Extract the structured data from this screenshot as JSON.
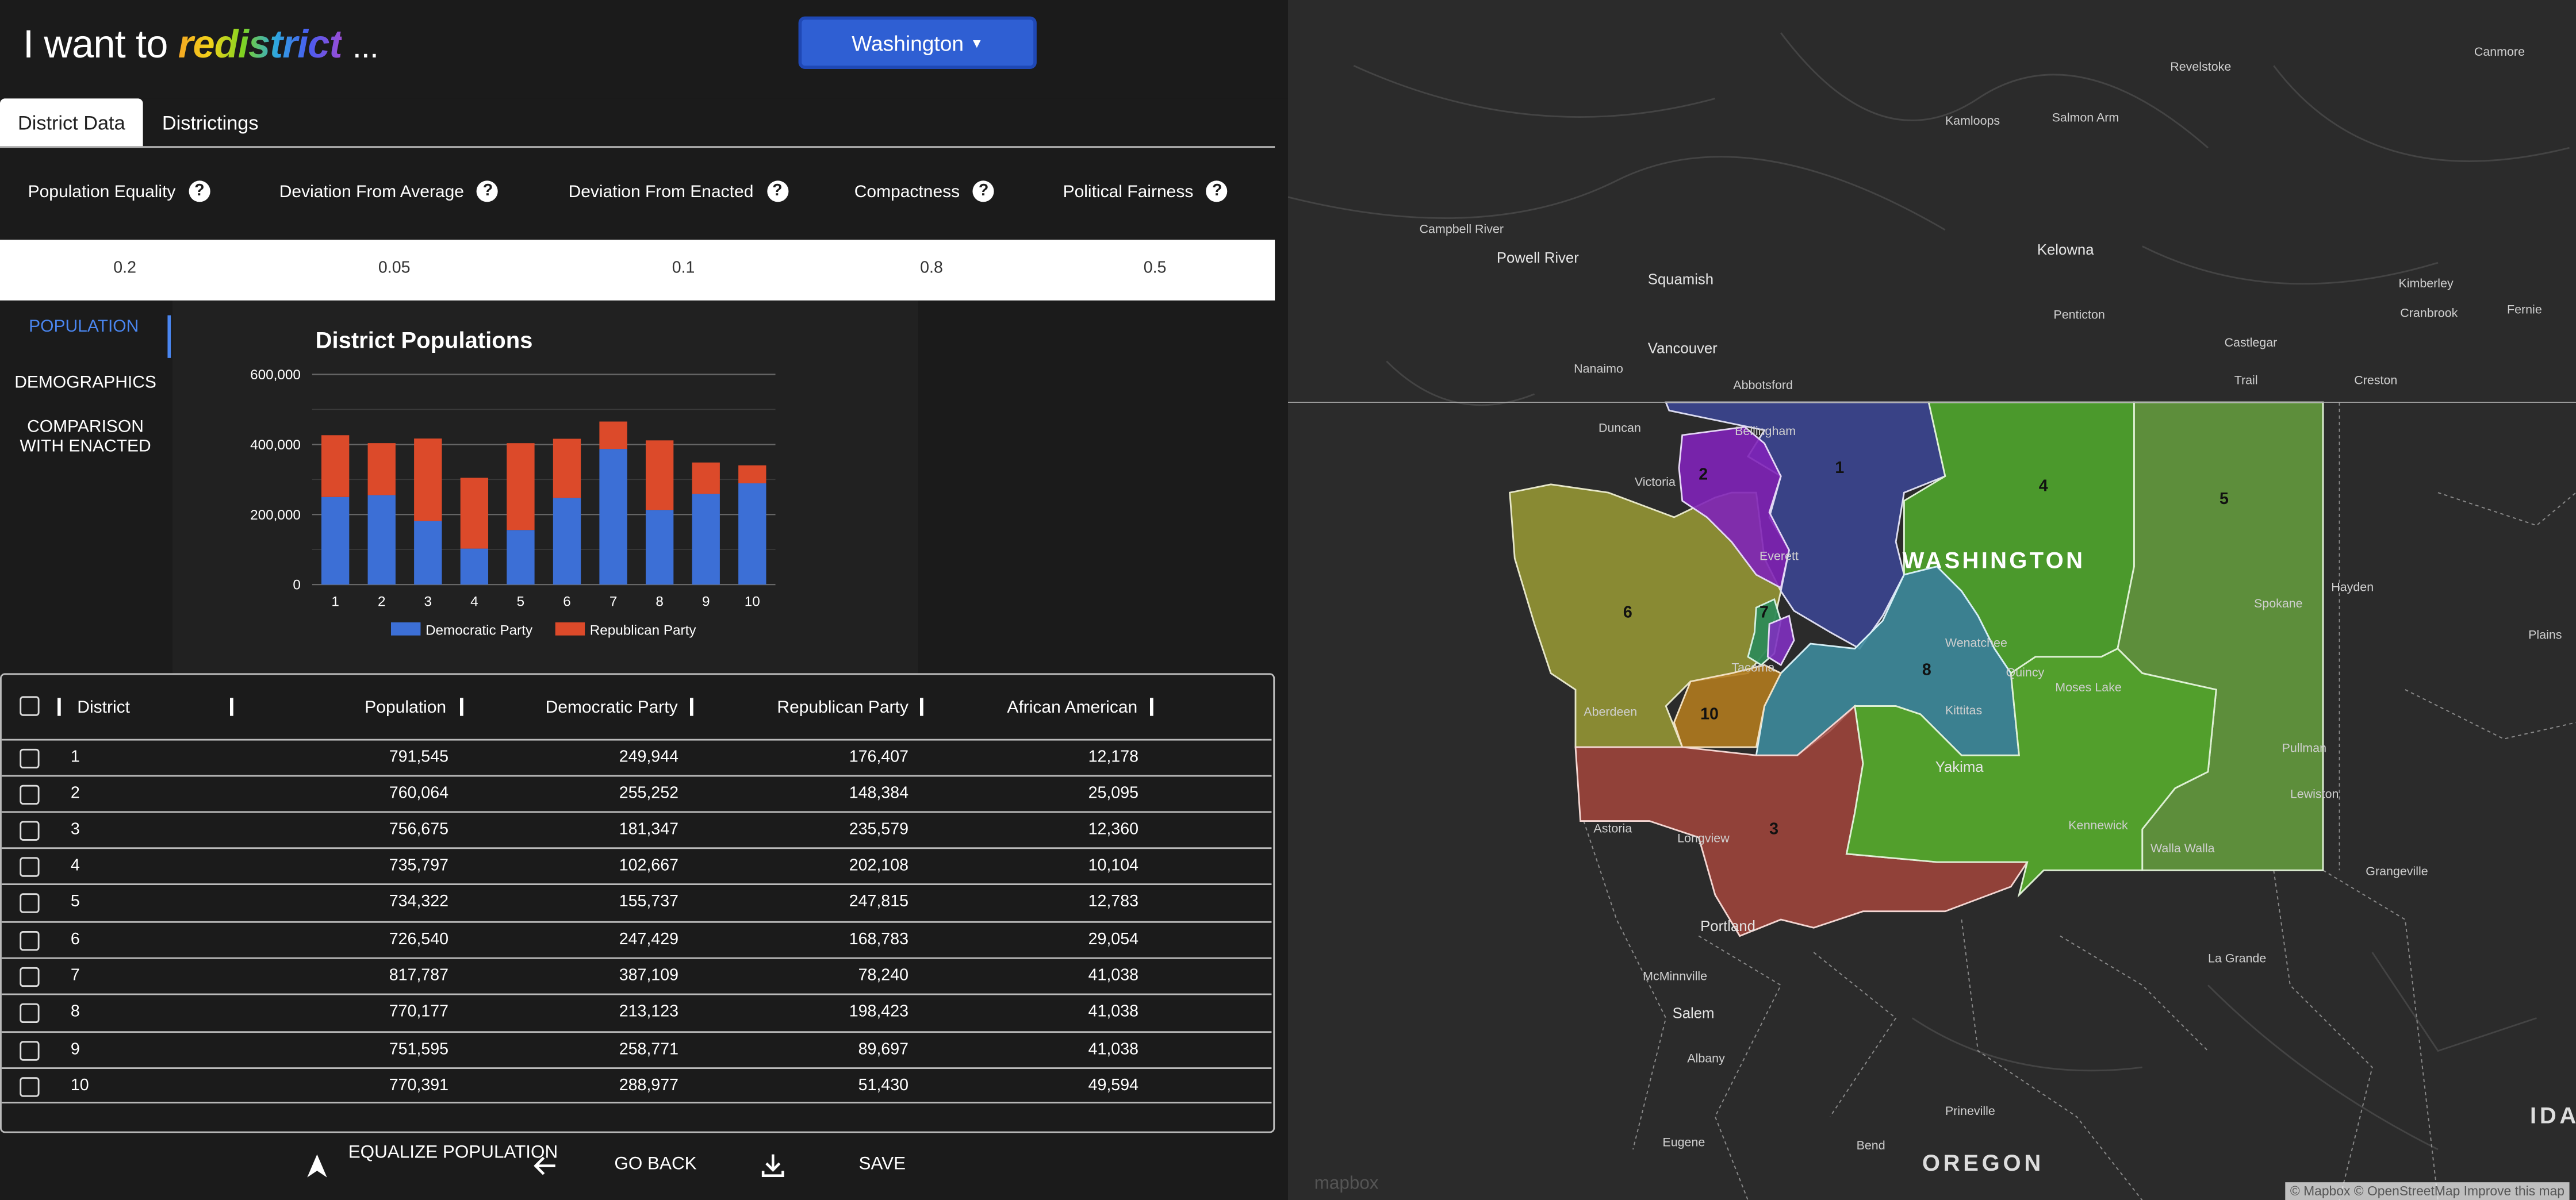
{
  "header": {
    "title_prefix": "I want to",
    "title_word": "redistrict",
    "title_suffix": "...",
    "state_selector": "Washington"
  },
  "tabs": [
    "District Data",
    "Districtings"
  ],
  "measures": [
    {
      "label": "Population Equality",
      "value": "0.2"
    },
    {
      "label": "Deviation From Average",
      "value": "0.05"
    },
    {
      "label": "Deviation From Enacted",
      "value": "0.1"
    },
    {
      "label": "Compactness",
      "value": "0.8"
    },
    {
      "label": "Political Fairness",
      "value": "0.5"
    }
  ],
  "help_icon_glyph": "?",
  "side_tabs": [
    "POPULATION",
    "DEMOGRAPHICS",
    "COMPARISON WITH ENACTED"
  ],
  "chart_data": {
    "type": "bar",
    "title": "District Populations",
    "categories": [
      "1",
      "2",
      "3",
      "4",
      "5",
      "6",
      "7",
      "8",
      "9",
      "10"
    ],
    "series": [
      {
        "name": "Democratic Party",
        "values": [
          249944,
          255252,
          181347,
          102667,
          155737,
          247429,
          387109,
          213123,
          258771,
          288977
        ]
      },
      {
        "name": "Republican Party",
        "values": [
          176407,
          148384,
          235579,
          202108,
          247815,
          168783,
          78240,
          198423,
          89697,
          51430
        ]
      }
    ],
    "stacked": true,
    "ylim": [
      0,
      600000
    ],
    "yticks": [
      "0",
      "200,000",
      "400,000",
      "600,000"
    ],
    "colors": [
      "#3c6fd6",
      "#dc4a2a"
    ],
    "legend": "bottom",
    "grid": true
  },
  "table": {
    "columns": [
      "District",
      "Population",
      "Democratic Party",
      "Republican Party",
      "African American"
    ],
    "rows": [
      [
        "1",
        "791,545",
        "249,944",
        "176,407",
        "12,178"
      ],
      [
        "2",
        "760,064",
        "255,252",
        "148,384",
        "25,095"
      ],
      [
        "3",
        "756,675",
        "181,347",
        "235,579",
        "12,360"
      ],
      [
        "4",
        "735,797",
        "102,667",
        "202,108",
        "10,104"
      ],
      [
        "5",
        "734,322",
        "155,737",
        "247,815",
        "12,783"
      ],
      [
        "6",
        "726,540",
        "247,429",
        "168,783",
        "29,054"
      ],
      [
        "7",
        "817,787",
        "387,109",
        "78,240",
        "41,038"
      ],
      [
        "8",
        "770,177",
        "213,123",
        "198,423",
        "41,038"
      ],
      [
        "9",
        "751,595",
        "258,771",
        "89,697",
        "41,038"
      ],
      [
        "10",
        "770,391",
        "288,977",
        "51,430",
        "49,594"
      ]
    ]
  },
  "footer": {
    "equalize": "EQUALIZE POPULATION",
    "go_back": "GO BACK",
    "save": "SAVE"
  },
  "map": {
    "state_label": "WASHINGTON",
    "oregon_label": "OREGON",
    "idaho_label": "IDA",
    "district_labels": [
      "1",
      "2",
      "3",
      "4",
      "5",
      "6",
      "7",
      "8",
      "10"
    ],
    "places": [
      "Revelstoke",
      "Canmore",
      "Kamloops",
      "Salmon Arm",
      "Campbell River",
      "Powell River",
      "Squamish",
      "Kelowna",
      "Kimberley",
      "Cranbrook",
      "Fernie",
      "Penticton",
      "Nanaimo",
      "Vancouver",
      "Abbotsford",
      "Castlegar",
      "Trail",
      "Creston",
      "Duncan",
      "Victoria",
      "Bellingham",
      "Everett",
      "Tacoma",
      "Aberdeen",
      "Wenatchee",
      "Quincy",
      "Moses Lake",
      "Kittitas",
      "Yakima",
      "Spokane",
      "Hayden",
      "Plains",
      "Pullman",
      "Lewiston",
      "Kennewick",
      "Walla Walla",
      "Grangeville",
      "Astoria",
      "Longview",
      "Portland",
      "McMinnville",
      "Salem",
      "Albany",
      "Prineville",
      "La Grande",
      "Eugene",
      "Bend"
    ],
    "attribution": "© Mapbox © OpenStreetMap Improve this map",
    "logo": "mapbox"
  }
}
